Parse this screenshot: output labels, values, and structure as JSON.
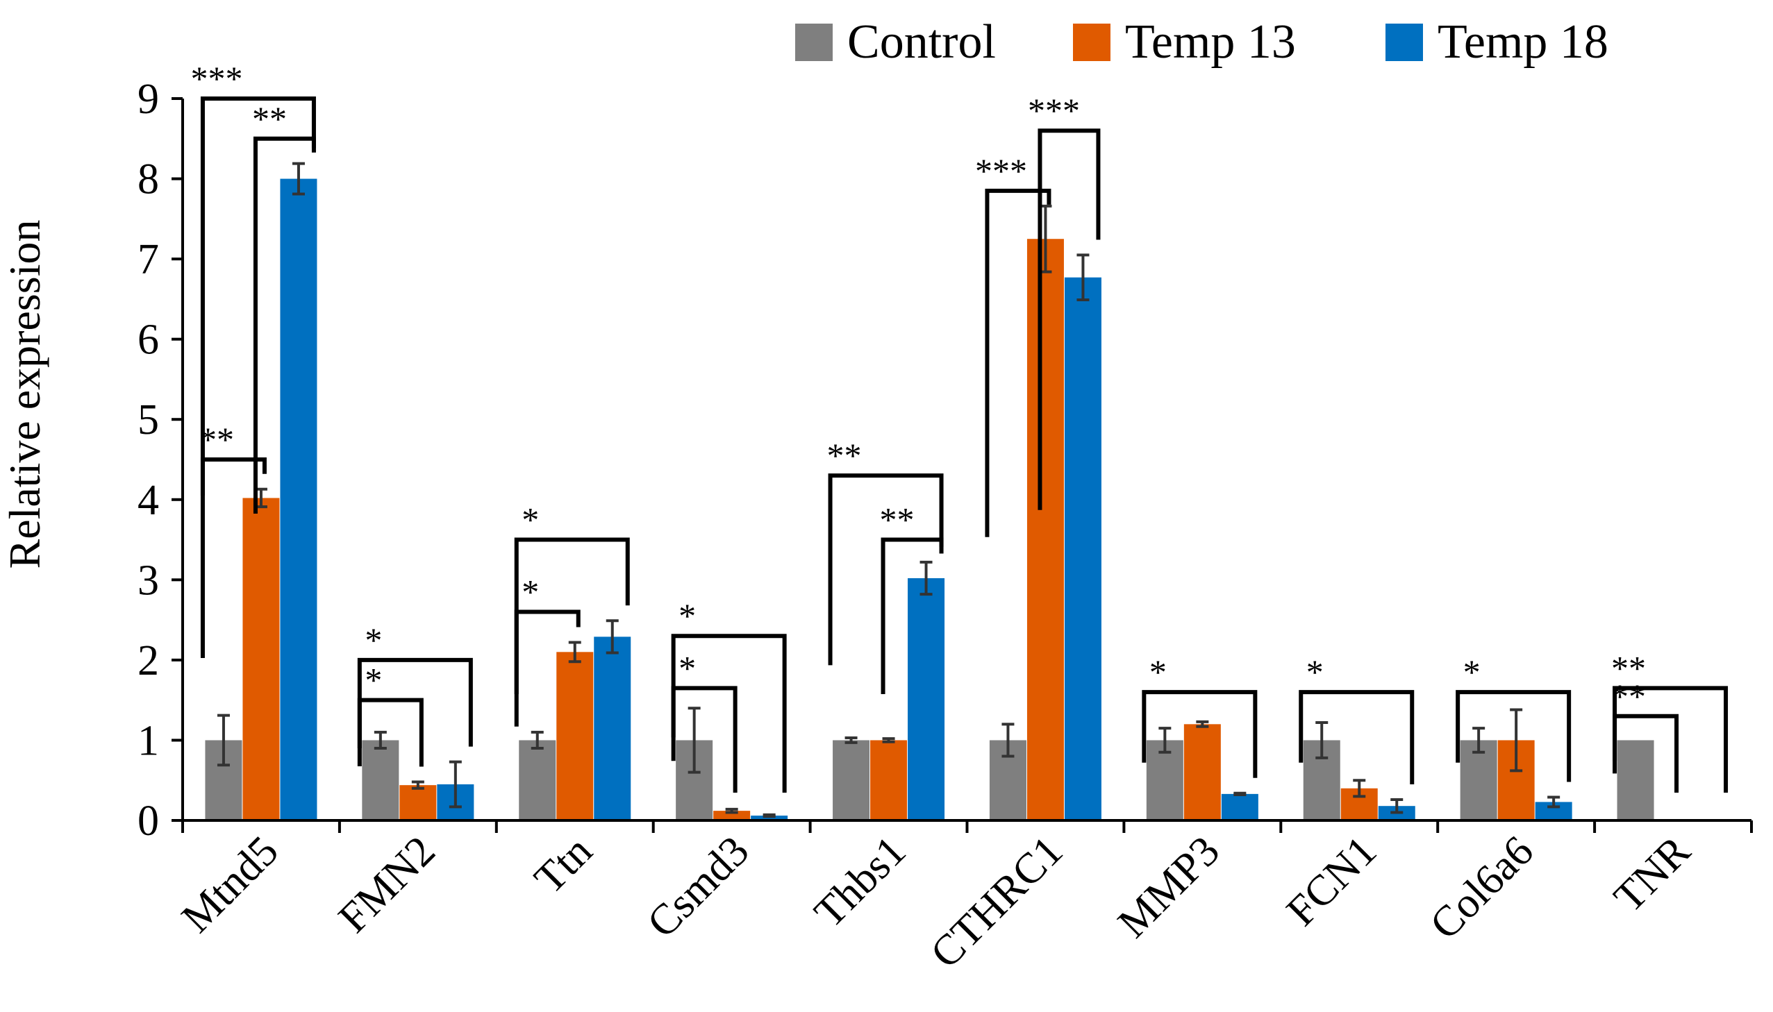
{
  "chart_data": {
    "type": "bar",
    "title": "",
    "xlabel": "",
    "ylabel": "Relative expression",
    "ylim": [
      0,
      9
    ],
    "yticks": [
      0,
      1,
      2,
      3,
      4,
      5,
      6,
      7,
      8,
      9
    ],
    "legend_position": "top-right",
    "categories": [
      "Mtnd5",
      "FMN2",
      "Ttn",
      "Csmd3",
      "Thbs1",
      "CTHRC1",
      "MMP3",
      "FCN1",
      "Col6a6",
      "TNR"
    ],
    "series": [
      {
        "name": "Control",
        "color": "#7f7f7f",
        "values": [
          1.0,
          1.0,
          1.0,
          1.0,
          1.0,
          1.0,
          1.0,
          1.0,
          1.0,
          1.0
        ],
        "errors": [
          0.31,
          0.1,
          0.1,
          0.4,
          0.03,
          0.2,
          0.15,
          0.22,
          0.15,
          0.0
        ]
      },
      {
        "name": "Temp 13",
        "color": "#e05a00",
        "values": [
          4.02,
          0.44,
          2.1,
          0.12,
          1.0,
          7.25,
          1.2,
          0.4,
          1.0,
          0.0
        ],
        "errors": [
          0.11,
          0.04,
          0.12,
          0.02,
          0.02,
          0.41,
          0.03,
          0.1,
          0.38,
          0.0
        ]
      },
      {
        "name": "Temp 18",
        "color": "#0070c0",
        "values": [
          8.0,
          0.45,
          2.29,
          0.06,
          3.02,
          6.77,
          0.33,
          0.18,
          0.23,
          0.0
        ],
        "errors": [
          0.19,
          0.28,
          0.2,
          0.01,
          0.2,
          0.28,
          0.01,
          0.08,
          0.06,
          0.0
        ]
      }
    ],
    "significance": [
      {
        "category": "Mtnd5",
        "from": "Control",
        "to": "Temp 13",
        "label": "**",
        "level": 4.5
      },
      {
        "category": "Mtnd5",
        "from": "Control",
        "to": "Temp 18",
        "label": "***",
        "level": 9.0
      },
      {
        "category": "Mtnd5",
        "from": "Temp 13",
        "to": "Temp 18",
        "label": "**",
        "level": 8.5
      },
      {
        "category": "FMN2",
        "from": "Control",
        "to": "Temp 13",
        "label": "*",
        "level": 1.5
      },
      {
        "category": "FMN2",
        "from": "Control",
        "to": "Temp 18",
        "label": "*",
        "level": 2.0
      },
      {
        "category": "Ttn",
        "from": "Control",
        "to": "Temp 13",
        "label": "*",
        "level": 2.6
      },
      {
        "category": "Ttn",
        "from": "Control",
        "to": "Temp 18",
        "label": "*",
        "level": 3.5
      },
      {
        "category": "Csmd3",
        "from": "Control",
        "to": "Temp 13",
        "label": "*",
        "level": 1.65
      },
      {
        "category": "Csmd3",
        "from": "Control",
        "to": "Temp 18",
        "label": "*",
        "level": 2.3
      },
      {
        "category": "Thbs1",
        "from": "Control",
        "to": "Temp 18",
        "label": "**",
        "level": 4.3
      },
      {
        "category": "Thbs1",
        "from": "Temp 13",
        "to": "Temp 18",
        "label": "**",
        "level": 3.5
      },
      {
        "category": "CTHRC1",
        "from": "Control",
        "to": "Temp 13",
        "label": "***",
        "level": 7.85
      },
      {
        "category": "CTHRC1",
        "from": "Temp 13",
        "to": "Temp 18",
        "label": "***",
        "level": 8.6
      },
      {
        "category": "MMP3",
        "from": "Control",
        "to": "Temp 18",
        "label": "*",
        "level": 1.6
      },
      {
        "category": "FCN1",
        "from": "Control",
        "to": "Temp 18",
        "label": "*",
        "level": 1.6
      },
      {
        "category": "Col6a6",
        "from": "Control",
        "to": "Temp 18",
        "label": "*",
        "level": 1.6
      },
      {
        "category": "TNR",
        "from": "Control",
        "to": "Temp 13",
        "label": "**",
        "level": 1.3
      },
      {
        "category": "TNR",
        "from": "Control",
        "to": "Temp 18",
        "label": "**",
        "level": 1.65
      }
    ]
  }
}
